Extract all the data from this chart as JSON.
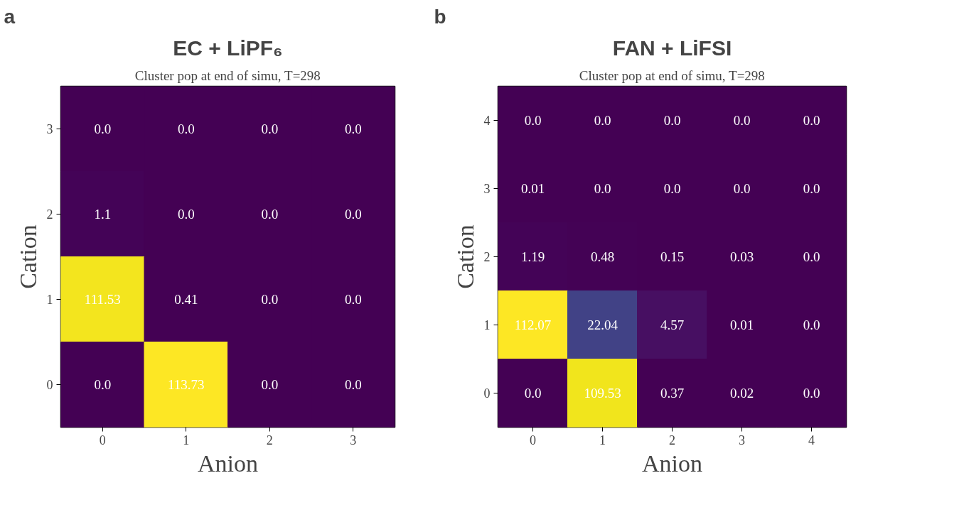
{
  "chart_data": [
    {
      "type": "heatmap",
      "title": "EC + LiPF₆",
      "subtitle": "Cluster pop at end of simu, T=298",
      "xlabel": "Anion",
      "ylabel": "Cation",
      "annotations": [
        "a"
      ],
      "categories": [
        "0",
        "1",
        "2",
        "3"
      ],
      "y_categories": [
        "3",
        "2",
        "1",
        "0"
      ],
      "cells": [
        [
          0.0,
          0.0,
          0.0,
          0.0
        ],
        [
          1.1,
          0.0,
          0.0,
          0.0
        ],
        [
          111.53,
          0.41,
          0.0,
          0.0
        ],
        [
          0.0,
          113.73,
          0.0,
          0.0
        ]
      ],
      "cell_labels": [
        [
          "0.0",
          "0.0",
          "0.0",
          "0.0"
        ],
        [
          "1.1",
          "0.0",
          "0.0",
          "0.0"
        ],
        [
          "111.53",
          "0.41",
          "0.0",
          "0.0"
        ],
        [
          "0.0",
          "113.73",
          "0.0",
          "0.0"
        ]
      ]
    },
    {
      "type": "heatmap",
      "title": "FAN + LiFSI",
      "subtitle": "Cluster pop at end of simu, T=298",
      "xlabel": "Anion",
      "ylabel": "Cation",
      "annotations": [
        "b"
      ],
      "categories": [
        "0",
        "1",
        "2",
        "3",
        "4"
      ],
      "y_categories": [
        "4",
        "3",
        "2",
        "1",
        "0"
      ],
      "cells": [
        [
          0.0,
          0.0,
          0.0,
          0.0,
          0.0
        ],
        [
          0.01,
          0.0,
          0.0,
          0.0,
          0.0
        ],
        [
          1.19,
          0.48,
          0.15,
          0.03,
          0.0
        ],
        [
          112.07,
          22.04,
          4.57,
          0.01,
          0.0
        ],
        [
          0.0,
          109.53,
          0.37,
          0.02,
          0.0
        ]
      ],
      "cell_labels": [
        [
          "0.0",
          "0.0",
          "0.0",
          "0.0",
          "0.0"
        ],
        [
          "0.01",
          "0.0",
          "0.0",
          "0.0",
          "0.0"
        ],
        [
          "1.19",
          "0.48",
          "0.15",
          "0.03",
          "0.0"
        ],
        [
          "112.07",
          "22.04",
          "4.57",
          "0.01",
          "0.0"
        ],
        [
          "0.0",
          "109.53",
          "0.37",
          "0.02",
          "0.0"
        ]
      ]
    }
  ]
}
